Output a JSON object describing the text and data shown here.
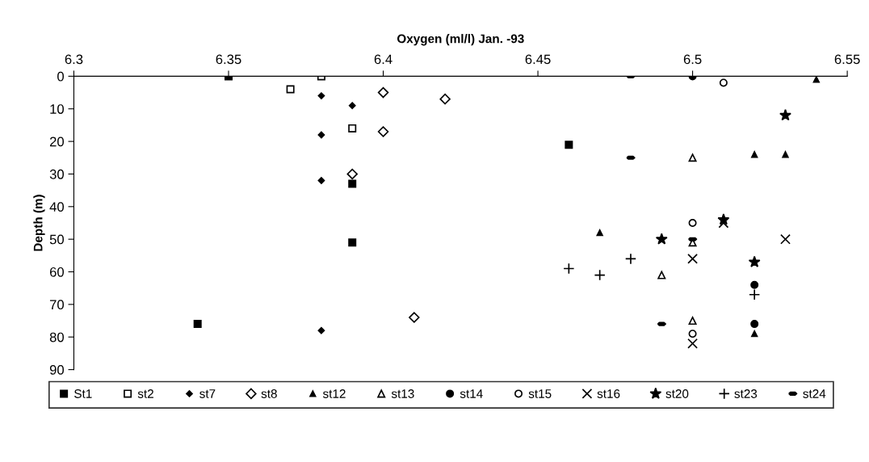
{
  "chart_data": {
    "type": "scatter",
    "xlabel": "Oxygen (ml/l) Jan. -93",
    "ylabel": "Depth (m)",
    "xlim": [
      6.3,
      6.55
    ],
    "xticks": [
      6.3,
      6.35,
      6.4,
      6.45,
      6.5,
      6.55
    ],
    "ylim": [
      90,
      0
    ],
    "yticks": [
      0,
      10,
      20,
      30,
      40,
      50,
      60,
      70,
      80,
      90
    ],
    "grid": false,
    "legend": "bottom",
    "series": [
      {
        "name": "St1",
        "color": "#000000",
        "marker": "square",
        "x": [
          6.35,
          6.46,
          6.39,
          6.39,
          6.34
        ],
        "values": [
          0,
          21,
          33,
          51,
          76
        ]
      },
      {
        "name": "st2",
        "color": "#000000",
        "marker": "square",
        "x": [
          6.38,
          6.37,
          6.39
        ],
        "values": [
          0,
          4,
          16
        ]
      },
      {
        "name": "st7",
        "color": "#000000",
        "marker": "diamond",
        "x": [
          6.38,
          6.39,
          6.38,
          6.38,
          6.38
        ],
        "values": [
          6,
          9,
          18,
          32,
          78
        ]
      },
      {
        "name": "st8",
        "color": "#000000",
        "marker": "diamond",
        "x": [
          6.4,
          6.42,
          6.4,
          6.39,
          6.41
        ],
        "values": [
          5,
          7,
          17,
          30,
          74
        ]
      },
      {
        "name": "st12",
        "color": "#000000",
        "marker": "triangle",
        "x": [
          6.54,
          6.52,
          6.53,
          6.47,
          6.52
        ],
        "values": [
          1,
          24,
          24,
          48,
          79
        ]
      },
      {
        "name": "st13",
        "color": "#000000",
        "marker": "triangle",
        "x": [
          6.5,
          6.5,
          6.49,
          6.5
        ],
        "values": [
          25,
          51,
          61,
          75
        ]
      },
      {
        "name": "st14",
        "color": "#000000",
        "marker": "circle",
        "x": [
          6.5,
          6.52,
          6.52
        ],
        "values": [
          0,
          64,
          76
        ]
      },
      {
        "name": "st15",
        "color": "#000000",
        "marker": "circle",
        "x": [
          6.51,
          6.5,
          6.5
        ],
        "values": [
          2,
          45,
          79
        ]
      },
      {
        "name": "st16",
        "color": "#000000",
        "marker": "cross",
        "x": [
          6.53,
          6.5,
          6.51,
          6.5
        ],
        "values": [
          50,
          56,
          45,
          82
        ]
      },
      {
        "name": "st20",
        "color": "#000000",
        "marker": "star",
        "x": [
          6.53,
          6.49,
          6.51,
          6.52
        ],
        "values": [
          12,
          50,
          44,
          57
        ]
      },
      {
        "name": "st23",
        "color": "#000000",
        "marker": "cross",
        "x": [
          6.46,
          6.47,
          6.48,
          6.52
        ],
        "values": [
          59,
          61,
          56,
          67
        ]
      },
      {
        "name": "st24",
        "color": "#000000",
        "x": [
          6.48,
          6.48,
          6.5,
          6.49
        ],
        "values": [
          0,
          25,
          50,
          76
        ]
      }
    ]
  }
}
